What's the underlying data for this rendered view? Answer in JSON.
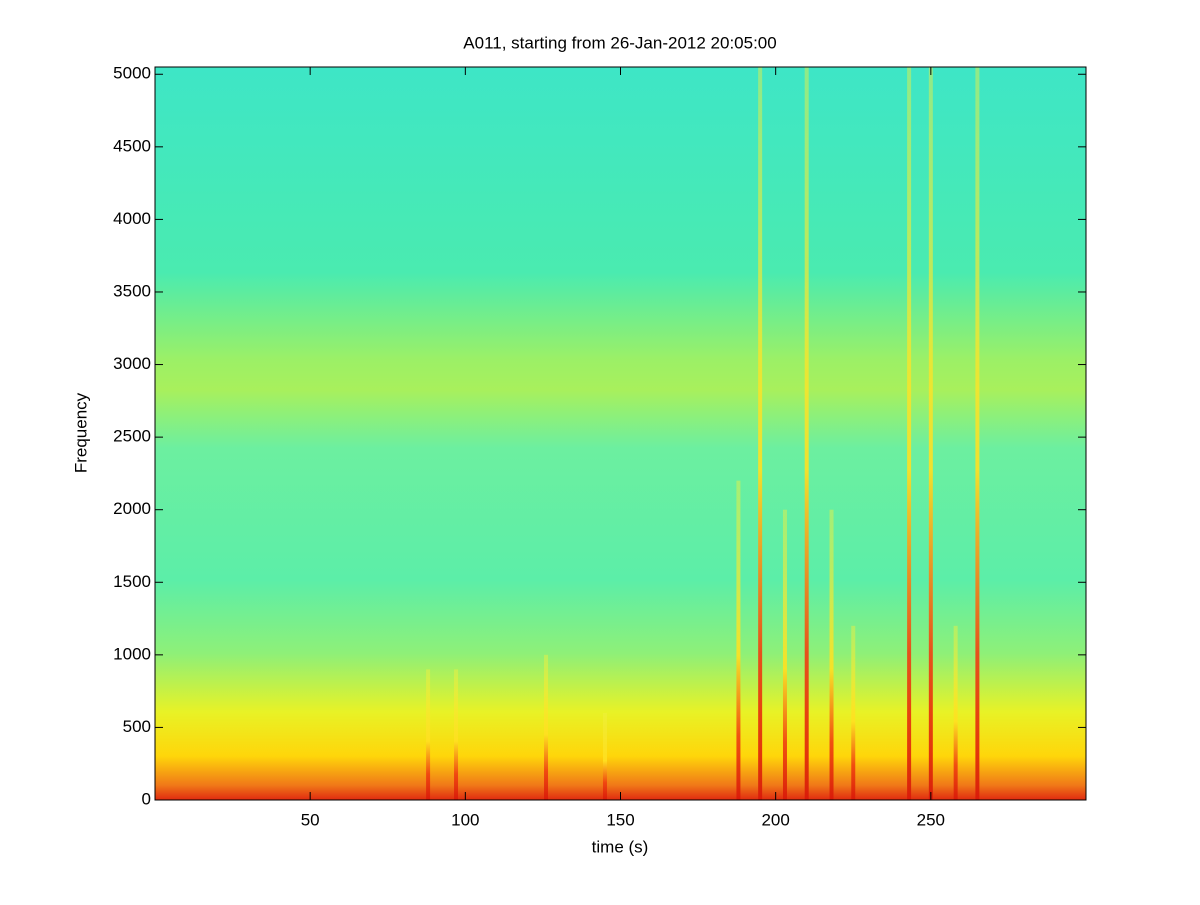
{
  "chart_data": {
    "type": "spectrogram",
    "title": "A011, starting from 26-Jan-2012 20:05:00",
    "xlabel": "time (s)",
    "ylabel": "Frequency",
    "xlim": [
      0,
      300
    ],
    "ylim": [
      0,
      5050
    ],
    "xticks": [
      50,
      100,
      150,
      200,
      250
    ],
    "yticks": [
      0,
      500,
      1000,
      1500,
      2000,
      2500,
      3000,
      3500,
      4000,
      4500,
      5000
    ],
    "colormap": "jet",
    "events": {
      "time": [
        88,
        97,
        126,
        145,
        188,
        195,
        203,
        210,
        218,
        225,
        243,
        250,
        258,
        265
      ],
      "top": [
        900,
        900,
        1000,
        600,
        2200,
        5050,
        2000,
        5050,
        2000,
        1200,
        5050,
        5050,
        1200,
        5050
      ]
    }
  }
}
